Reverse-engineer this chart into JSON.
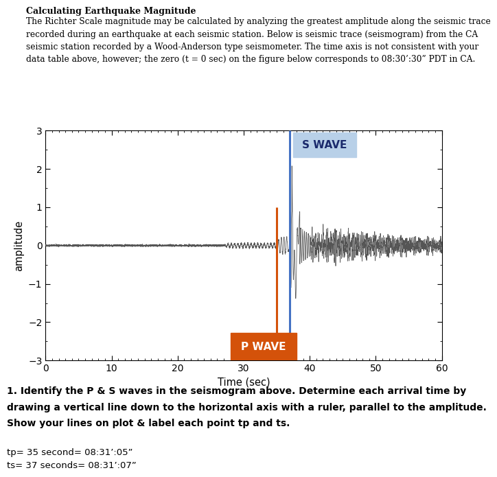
{
  "title_bold": "Calculating Earthquake Magnitude",
  "desc_line1": "The Richter Scale magnitude may be calculated by analyzing the greatest amplitude along the seismic trace",
  "desc_line2": "recorded during an earthquake at each seismic station. Below is seismic trace (seismogram) from the CA",
  "desc_line3": "seismic station recorded by a Wood-Anderson type seismometer. The time axis is not consistent with your",
  "desc_line4": "data table above, however; the zero (t = 0 sec) on the figure below corresponds to 08:30’:30” PDT in CA.",
  "xlabel": "Time (sec)",
  "ylabel": "amplitude",
  "xlim": [
    0,
    60
  ],
  "ylim": [
    -3,
    3
  ],
  "xticks": [
    0,
    10,
    20,
    30,
    40,
    50,
    60
  ],
  "yticks": [
    -3,
    -2,
    -1,
    0,
    1,
    2,
    3
  ],
  "p_wave_x": 35,
  "s_wave_x": 37,
  "p_wave_color": "#d4520a",
  "s_wave_color": "#4472c4",
  "p_label": "P WAVE",
  "s_label": "S WAVE",
  "s_box_color": "#b8d0e8",
  "question_line1": "1. Identify the P & S waves in the seismogram above. Determine each arrival time by",
  "question_line2": "drawing a vertical line down to the horizontal axis with a ruler, parallel to the amplitude.",
  "question_line3": "Show your lines on plot & label each point tp and ts.",
  "answer1": "tp= 35 second= 08:31’:05”",
  "answer2": "ts= 37 seconds= 08:31’:07”",
  "background_color": "#ffffff",
  "seismogram_color": "#555555",
  "fig_width": 7.04,
  "fig_height": 8.38
}
